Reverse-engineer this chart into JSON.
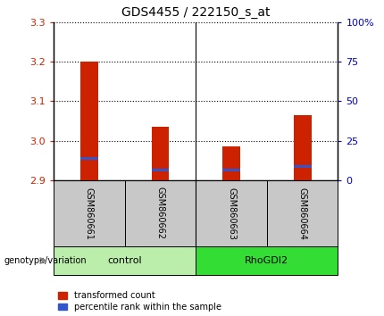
{
  "title": "GDS4455 / 222150_s_at",
  "samples": [
    "GSM860661",
    "GSM860662",
    "GSM860663",
    "GSM860664"
  ],
  "groups": [
    "control",
    "control",
    "RhoGDI2",
    "RhoGDI2"
  ],
  "group_labels": [
    "control",
    "RhoGDI2"
  ],
  "red_values": [
    3.2,
    3.035,
    2.985,
    3.065
  ],
  "blue_values": [
    2.955,
    2.925,
    2.925,
    2.935
  ],
  "base_value": 2.9,
  "ylim": [
    2.9,
    3.3
  ],
  "yticks_left": [
    2.9,
    3.0,
    3.1,
    3.2,
    3.3
  ],
  "yticks_right": [
    0,
    25,
    50,
    75,
    100
  ],
  "right_tick_labels": [
    "0",
    "25",
    "50",
    "75",
    "100%"
  ],
  "bar_color_red": "#CC2200",
  "bar_color_blue": "#3355CC",
  "legend_red": "transformed count",
  "legend_blue": "percentile rank within the sample",
  "bar_width": 0.25,
  "label_genotype": "genotype/variation",
  "bg_sample_row": "#C8C8C8",
  "left_tick_color": "#CC2200",
  "right_tick_color": "#0000CC",
  "control_color": "#BBEEAA",
  "rhodgi2_color": "#33DD33"
}
